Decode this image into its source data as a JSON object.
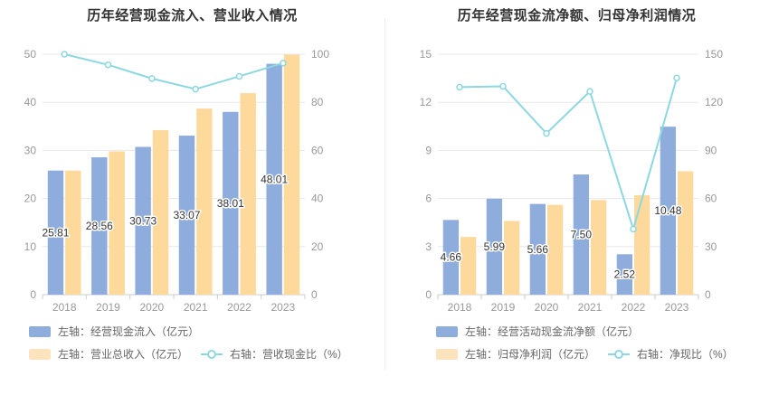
{
  "colors": {
    "bar_primary": "#8eacdc",
    "bar_secondary": "#fdd99b",
    "line": "#8dd8e0",
    "axis_text": "#999999",
    "grid": "#e8e8e8"
  },
  "chart_data": [
    {
      "type": "bar",
      "title": "历年经营现金流入、营业收入情况",
      "categories": [
        "2018",
        "2019",
        "2020",
        "2021",
        "2022",
        "2023"
      ],
      "left_axis": {
        "ticks": [
          "0",
          "10",
          "20",
          "30",
          "40",
          "50"
        ],
        "ylim": [
          0,
          50
        ]
      },
      "right_axis": {
        "ticks": [
          "0",
          "20",
          "40",
          "60",
          "80",
          "100"
        ],
        "ylim": [
          0,
          100
        ]
      },
      "series": [
        {
          "name": "左轴：经营现金流入（亿元）",
          "axis": "left",
          "type": "bar",
          "values": [
            25.81,
            28.56,
            30.73,
            33.07,
            38.01,
            48.01
          ],
          "labels": [
            "25.81",
            "28.56",
            "30.73",
            "33.07",
            "38.01",
            "48.01"
          ]
        },
        {
          "name": "左轴：营业总收入（亿元）",
          "axis": "left",
          "type": "bar",
          "values": [
            25.8,
            29.8,
            34.2,
            38.7,
            41.9,
            49.9
          ]
        },
        {
          "name": "右轴：营收现金比（%）",
          "axis": "right",
          "type": "line",
          "values": [
            100.0,
            95.6,
            89.9,
            85.5,
            90.8,
            96.3
          ]
        }
      ],
      "legend": [
        {
          "label": "左轴：经营现金流入（亿元）",
          "kind": "bar_primary"
        },
        {
          "label": "左轴：营业总收入（亿元）",
          "kind": "bar_secondary"
        },
        {
          "label": "右轴：营收现金比（%）",
          "kind": "line"
        }
      ],
      "grid": true,
      "legend_position": "bottom"
    },
    {
      "type": "bar",
      "title": "历年经营现金流净额、归母净利润情况",
      "categories": [
        "2018",
        "2019",
        "2020",
        "2021",
        "2022",
        "2023"
      ],
      "left_axis": {
        "ticks": [
          "0",
          "3",
          "6",
          "9",
          "12",
          "15"
        ],
        "ylim": [
          0,
          15
        ]
      },
      "right_axis": {
        "ticks": [
          "0",
          "30",
          "60",
          "90",
          "120",
          "150"
        ],
        "ylim": [
          0,
          150
        ]
      },
      "series": [
        {
          "name": "左轴：经营活动现金流净额（亿元）",
          "axis": "left",
          "type": "bar",
          "values": [
            4.66,
            5.99,
            5.66,
            7.5,
            2.52,
            10.48
          ],
          "labels": [
            "4.66",
            "5.99",
            "5.66",
            "7.50",
            "2.52",
            "10.48"
          ]
        },
        {
          "name": "左轴：归母净利润（亿元）",
          "axis": "left",
          "type": "bar",
          "values": [
            3.6,
            4.6,
            5.6,
            5.9,
            6.2,
            7.7
          ]
        },
        {
          "name": "右轴：净现比（%）",
          "axis": "right",
          "type": "line",
          "values": [
            129.5,
            130.0,
            100.6,
            126.8,
            40.9,
            135.2
          ]
        }
      ],
      "legend": [
        {
          "label": "左轴：经营活动现金流净额（亿元）",
          "kind": "bar_primary"
        },
        {
          "label": "左轴：归母净利润（亿元）",
          "kind": "bar_secondary"
        },
        {
          "label": "右轴：净现比（%）",
          "kind": "line"
        }
      ],
      "grid": true,
      "legend_position": "bottom"
    }
  ]
}
